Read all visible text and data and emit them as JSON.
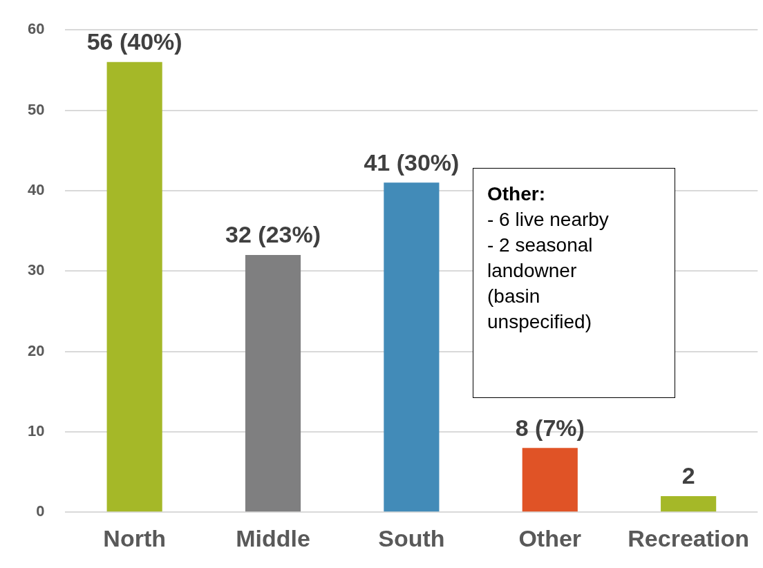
{
  "chart_data": {
    "type": "bar",
    "categories": [
      "North",
      "Middle",
      "South",
      "Other",
      "Recreation"
    ],
    "values": [
      56,
      32,
      41,
      8,
      2
    ],
    "value_labels": [
      "56 (40%)",
      "32 (23%)",
      "41 (30%)",
      "8 (7%)",
      "2"
    ],
    "colors": [
      "#a5b828",
      "#7f7f80",
      "#428bb8",
      "#e05326",
      "#a5b828"
    ],
    "ylim": [
      0,
      60
    ],
    "yticks": [
      0,
      10,
      20,
      30,
      40,
      50,
      60
    ],
    "grid": "y",
    "legend": false,
    "annotations": [
      "Other:\n- 6 live nearby\n- 2 seasonal\nlandowner\n(basin\nunspecified)"
    ]
  }
}
